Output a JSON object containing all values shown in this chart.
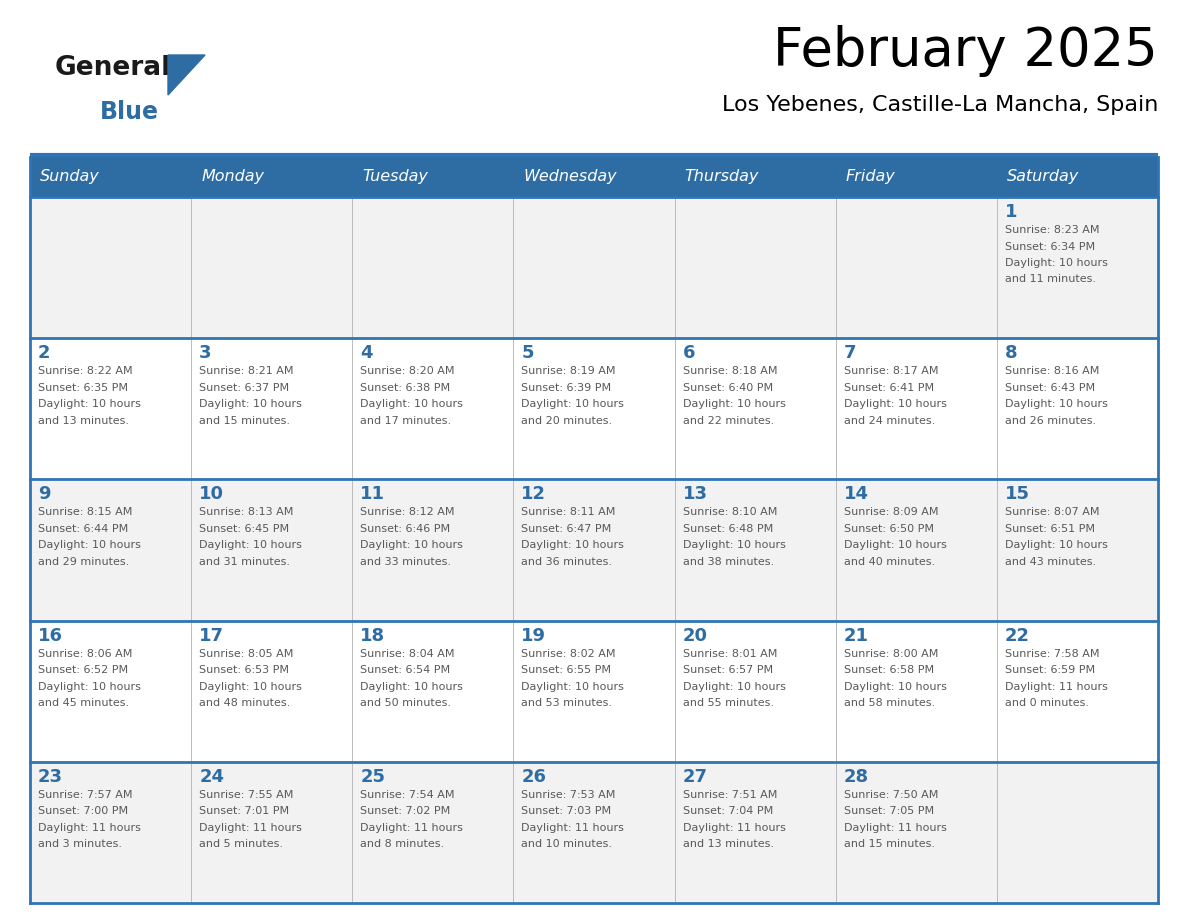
{
  "title": "February 2025",
  "subtitle": "Los Yebenes, Castille-La Mancha, Spain",
  "header_bg": "#2E6DA4",
  "header_text": "#FFFFFF",
  "header_line_color": "#2E75B6",
  "cell_bg_odd": "#F2F2F2",
  "cell_bg_even": "#FFFFFF",
  "day_number_color": "#2E6DA4",
  "info_text_color": "#595959",
  "border_color": "#2E75B6",
  "days_of_week": [
    "Sunday",
    "Monday",
    "Tuesday",
    "Wednesday",
    "Thursday",
    "Friday",
    "Saturday"
  ],
  "logo_color1": "#1A1A1A",
  "logo_color2": "#2E6DA4",
  "weeks": [
    [
      {
        "day": null,
        "info": ""
      },
      {
        "day": null,
        "info": ""
      },
      {
        "day": null,
        "info": ""
      },
      {
        "day": null,
        "info": ""
      },
      {
        "day": null,
        "info": ""
      },
      {
        "day": null,
        "info": ""
      },
      {
        "day": 1,
        "info": "Sunrise: 8:23 AM\nSunset: 6:34 PM\nDaylight: 10 hours\nand 11 minutes."
      }
    ],
    [
      {
        "day": 2,
        "info": "Sunrise: 8:22 AM\nSunset: 6:35 PM\nDaylight: 10 hours\nand 13 minutes."
      },
      {
        "day": 3,
        "info": "Sunrise: 8:21 AM\nSunset: 6:37 PM\nDaylight: 10 hours\nand 15 minutes."
      },
      {
        "day": 4,
        "info": "Sunrise: 8:20 AM\nSunset: 6:38 PM\nDaylight: 10 hours\nand 17 minutes."
      },
      {
        "day": 5,
        "info": "Sunrise: 8:19 AM\nSunset: 6:39 PM\nDaylight: 10 hours\nand 20 minutes."
      },
      {
        "day": 6,
        "info": "Sunrise: 8:18 AM\nSunset: 6:40 PM\nDaylight: 10 hours\nand 22 minutes."
      },
      {
        "day": 7,
        "info": "Sunrise: 8:17 AM\nSunset: 6:41 PM\nDaylight: 10 hours\nand 24 minutes."
      },
      {
        "day": 8,
        "info": "Sunrise: 8:16 AM\nSunset: 6:43 PM\nDaylight: 10 hours\nand 26 minutes."
      }
    ],
    [
      {
        "day": 9,
        "info": "Sunrise: 8:15 AM\nSunset: 6:44 PM\nDaylight: 10 hours\nand 29 minutes."
      },
      {
        "day": 10,
        "info": "Sunrise: 8:13 AM\nSunset: 6:45 PM\nDaylight: 10 hours\nand 31 minutes."
      },
      {
        "day": 11,
        "info": "Sunrise: 8:12 AM\nSunset: 6:46 PM\nDaylight: 10 hours\nand 33 minutes."
      },
      {
        "day": 12,
        "info": "Sunrise: 8:11 AM\nSunset: 6:47 PM\nDaylight: 10 hours\nand 36 minutes."
      },
      {
        "day": 13,
        "info": "Sunrise: 8:10 AM\nSunset: 6:48 PM\nDaylight: 10 hours\nand 38 minutes."
      },
      {
        "day": 14,
        "info": "Sunrise: 8:09 AM\nSunset: 6:50 PM\nDaylight: 10 hours\nand 40 minutes."
      },
      {
        "day": 15,
        "info": "Sunrise: 8:07 AM\nSunset: 6:51 PM\nDaylight: 10 hours\nand 43 minutes."
      }
    ],
    [
      {
        "day": 16,
        "info": "Sunrise: 8:06 AM\nSunset: 6:52 PM\nDaylight: 10 hours\nand 45 minutes."
      },
      {
        "day": 17,
        "info": "Sunrise: 8:05 AM\nSunset: 6:53 PM\nDaylight: 10 hours\nand 48 minutes."
      },
      {
        "day": 18,
        "info": "Sunrise: 8:04 AM\nSunset: 6:54 PM\nDaylight: 10 hours\nand 50 minutes."
      },
      {
        "day": 19,
        "info": "Sunrise: 8:02 AM\nSunset: 6:55 PM\nDaylight: 10 hours\nand 53 minutes."
      },
      {
        "day": 20,
        "info": "Sunrise: 8:01 AM\nSunset: 6:57 PM\nDaylight: 10 hours\nand 55 minutes."
      },
      {
        "day": 21,
        "info": "Sunrise: 8:00 AM\nSunset: 6:58 PM\nDaylight: 10 hours\nand 58 minutes."
      },
      {
        "day": 22,
        "info": "Sunrise: 7:58 AM\nSunset: 6:59 PM\nDaylight: 11 hours\nand 0 minutes."
      }
    ],
    [
      {
        "day": 23,
        "info": "Sunrise: 7:57 AM\nSunset: 7:00 PM\nDaylight: 11 hours\nand 3 minutes."
      },
      {
        "day": 24,
        "info": "Sunrise: 7:55 AM\nSunset: 7:01 PM\nDaylight: 11 hours\nand 5 minutes."
      },
      {
        "day": 25,
        "info": "Sunrise: 7:54 AM\nSunset: 7:02 PM\nDaylight: 11 hours\nand 8 minutes."
      },
      {
        "day": 26,
        "info": "Sunrise: 7:53 AM\nSunset: 7:03 PM\nDaylight: 11 hours\nand 10 minutes."
      },
      {
        "day": 27,
        "info": "Sunrise: 7:51 AM\nSunset: 7:04 PM\nDaylight: 11 hours\nand 13 minutes."
      },
      {
        "day": 28,
        "info": "Sunrise: 7:50 AM\nSunset: 7:05 PM\nDaylight: 11 hours\nand 15 minutes."
      },
      {
        "day": null,
        "info": ""
      }
    ]
  ]
}
